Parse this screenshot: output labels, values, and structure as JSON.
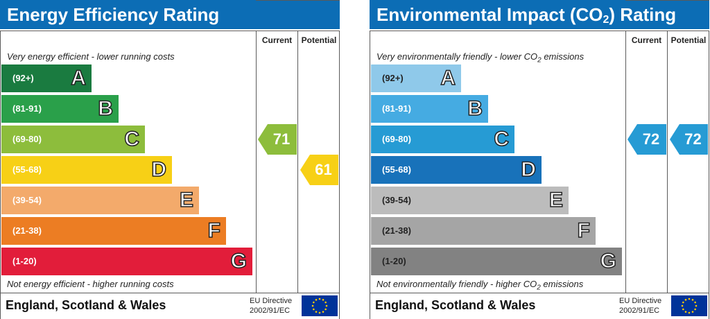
{
  "chart_data": [
    {
      "type": "bar",
      "title": "Energy Efficiency Rating",
      "columns": [
        "Current",
        "Potential"
      ],
      "top_caption": "Very energy efficient - lower running costs",
      "bottom_caption": "Not energy efficient - higher running costs",
      "bands": [
        {
          "range": "(92+)",
          "letter": "A",
          "color": "#1a7b40"
        },
        {
          "range": "(81-91)",
          "letter": "B",
          "color": "#2aa04a"
        },
        {
          "range": "(69-80)",
          "letter": "C",
          "color": "#8dbd3c"
        },
        {
          "range": "(55-68)",
          "letter": "D",
          "color": "#f7d016"
        },
        {
          "range": "(39-54)",
          "letter": "E",
          "color": "#f3aa6b"
        },
        {
          "range": "(21-38)",
          "letter": "F",
          "color": "#ec7d23"
        },
        {
          "range": "(1-20)",
          "letter": "G",
          "color": "#e21d3a"
        }
      ],
      "current": {
        "value": "71",
        "band": "C",
        "color": "#8dbd3c"
      },
      "potential": {
        "value": "61",
        "band": "D",
        "color": "#f7d016"
      }
    },
    {
      "type": "bar",
      "title_main": "Environmental Impact (CO",
      "title_sub": "2",
      "title_end": ") Rating",
      "columns": [
        "Current",
        "Potential"
      ],
      "top_caption_main": "Very environmentally friendly - lower CO",
      "top_caption_sub": "2",
      "top_caption_end": " emissions",
      "bottom_caption_main": "Not environmentally friendly - higher CO",
      "bottom_caption_sub": "2",
      "bottom_caption_end": " emissions",
      "bands": [
        {
          "range": "(92+)",
          "letter": "A",
          "color": "#8fc9ea"
        },
        {
          "range": "(81-91)",
          "letter": "B",
          "color": "#45abe2"
        },
        {
          "range": "(69-80)",
          "letter": "C",
          "color": "#269bd4"
        },
        {
          "range": "(55-68)",
          "letter": "D",
          "color": "#1872ba"
        },
        {
          "range": "(39-54)",
          "letter": "E",
          "color": "#bcbcbc"
        },
        {
          "range": "(21-38)",
          "letter": "F",
          "color": "#a5a5a5"
        },
        {
          "range": "(1-20)",
          "letter": "G",
          "color": "#828282"
        }
      ],
      "current": {
        "value": "72",
        "band": "C",
        "color": "#269bd4"
      },
      "potential": {
        "value": "72",
        "band": "C",
        "color": "#269bd4"
      }
    }
  ],
  "footer": {
    "region": "England, Scotland & Wales",
    "directive_line1": "EU Directive",
    "directive_line2": "2002/91/EC",
    "flag_icon": "eu-flag-icon"
  }
}
